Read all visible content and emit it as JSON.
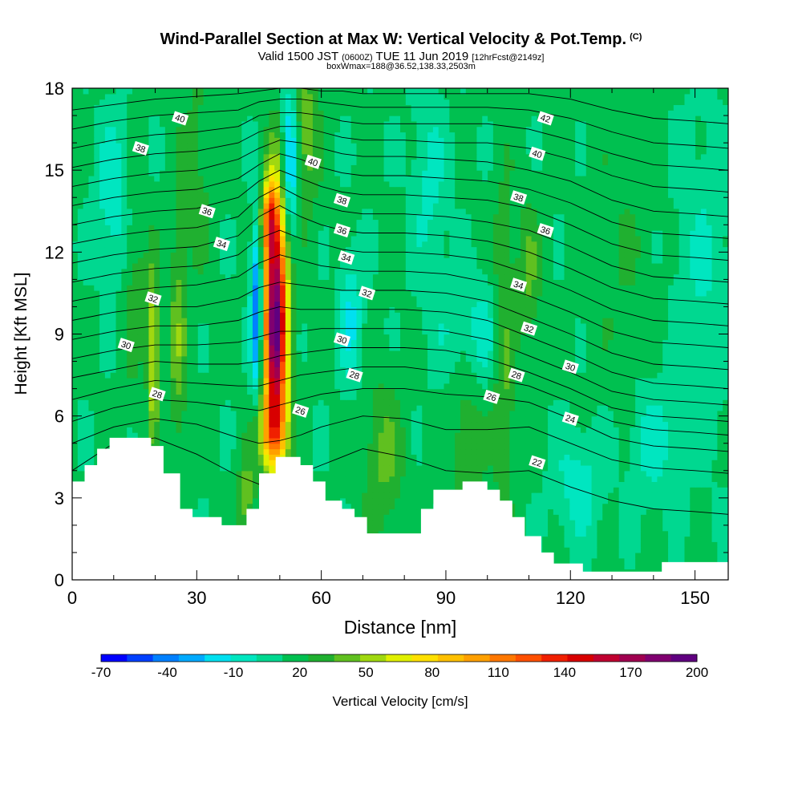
{
  "header": {
    "title": "Wind-Parallel Section at Max W: Vertical Velocity & Pot.Temp.",
    "copyright_mark": "(C)",
    "valid_prefix": "Valid 1500 JST",
    "valid_utc": "(0600Z)",
    "valid_date": "TUE 11 Jun 2019",
    "forecast_info": "[12hrFcst@2149z]",
    "boxwmax": "boxWmax=188@36.52,138.33,2503m"
  },
  "chart_data": {
    "type": "heatmap",
    "xlabel": "Distance [nm]",
    "ylabel": "Height [Kft MSL]",
    "xlim": [
      0,
      158
    ],
    "ylim": [
      0,
      18
    ],
    "x_ticks": [
      0,
      30,
      60,
      90,
      120,
      150
    ],
    "y_ticks": [
      0,
      3,
      6,
      9,
      12,
      15,
      18
    ],
    "colorbar": {
      "label": "Vertical Velocity [cm/s]",
      "tick_labels": [
        "-70",
        "-40",
        "-10",
        "20",
        "50",
        "80",
        "110",
        "140",
        "170",
        "200"
      ],
      "colors": [
        "#0000ff",
        "#0040ff",
        "#0080ff",
        "#00aaff",
        "#00e0f0",
        "#00e6c0",
        "#00d890",
        "#00c050",
        "#20b030",
        "#60c020",
        "#a0d810",
        "#e0f000",
        "#ffe000",
        "#ffc000",
        "#ffa000",
        "#ff7800",
        "#ff5000",
        "#f02000",
        "#d80000",
        "#c00030",
        "#a00050",
        "#800070",
        "#600080"
      ]
    },
    "terrain_kft": [
      [
        0,
        3.6
      ],
      [
        3,
        3.6
      ],
      [
        3,
        4.2
      ],
      [
        6,
        4.2
      ],
      [
        6,
        4.8
      ],
      [
        9,
        4.8
      ],
      [
        9,
        5.2
      ],
      [
        19,
        5.2
      ],
      [
        19,
        4.9
      ],
      [
        22,
        4.9
      ],
      [
        22,
        3.9
      ],
      [
        26,
        3.9
      ],
      [
        26,
        2.6
      ],
      [
        29,
        2.6
      ],
      [
        29,
        2.3
      ],
      [
        36,
        2.3
      ],
      [
        36,
        2.0
      ],
      [
        42,
        2.0
      ],
      [
        42,
        2.6
      ],
      [
        45,
        2.6
      ],
      [
        45,
        3.9
      ],
      [
        49,
        3.9
      ],
      [
        49,
        4.5
      ],
      [
        55,
        4.5
      ],
      [
        55,
        4.2
      ],
      [
        58,
        4.2
      ],
      [
        58,
        3.6
      ],
      [
        61,
        3.6
      ],
      [
        61,
        2.9
      ],
      [
        65,
        2.9
      ],
      [
        65,
        2.6
      ],
      [
        68,
        2.6
      ],
      [
        68,
        2.3
      ],
      [
        71,
        2.3
      ],
      [
        71,
        1.7
      ],
      [
        84,
        1.7
      ],
      [
        84,
        2.6
      ],
      [
        87,
        2.6
      ],
      [
        87,
        3.3
      ],
      [
        94,
        3.3
      ],
      [
        94,
        3.6
      ],
      [
        100,
        3.6
      ],
      [
        100,
        3.3
      ],
      [
        103,
        3.3
      ],
      [
        103,
        2.9
      ],
      [
        106,
        2.9
      ],
      [
        106,
        2.3
      ],
      [
        109,
        2.3
      ],
      [
        109,
        1.6
      ],
      [
        113,
        1.6
      ],
      [
        113,
        1.0
      ],
      [
        116,
        1.0
      ],
      [
        116,
        0.6
      ],
      [
        123,
        0.6
      ],
      [
        123,
        0.3
      ],
      [
        142,
        0.3
      ],
      [
        142,
        0.65
      ],
      [
        158,
        0.65
      ]
    ],
    "w_features": [
      {
        "x": 49,
        "y": 9.5,
        "sx": 2.0,
        "sy": 3.2,
        "amp": 190
      },
      {
        "x": 47.5,
        "y": 13.2,
        "sx": 1.3,
        "sy": 0.9,
        "amp": 70
      },
      {
        "x": 48,
        "y": 5.4,
        "sx": 2.4,
        "sy": 0.9,
        "amp": 60
      },
      {
        "x": 44.5,
        "y": 10.0,
        "sx": 1.0,
        "sy": 2.2,
        "amp": -70
      },
      {
        "x": 52.5,
        "y": 15.2,
        "sx": 1.4,
        "sy": 2.2,
        "amp": -55
      },
      {
        "x": 67,
        "y": 9.5,
        "sx": 2.0,
        "sy": 1.6,
        "amp": -30
      },
      {
        "x": 19.5,
        "y": 8.3,
        "sx": 0.9,
        "sy": 2.2,
        "amp": 55
      },
      {
        "x": 25.5,
        "y": 8.8,
        "sx": 1.5,
        "sy": 3.0,
        "amp": 30
      },
      {
        "x": 30,
        "y": 15,
        "sx": 3,
        "sy": 3,
        "amp": 15
      },
      {
        "x": 42,
        "y": 3.0,
        "sx": 1.5,
        "sy": 1.2,
        "amp": 30
      },
      {
        "x": 56,
        "y": 16.5,
        "sx": 2.5,
        "sy": 2.5,
        "amp": 30
      },
      {
        "x": 75,
        "y": 4.5,
        "sx": 3.5,
        "sy": 2,
        "amp": 25
      },
      {
        "x": 95,
        "y": 5.5,
        "sx": 3,
        "sy": 3,
        "amp": 20
      },
      {
        "x": 104,
        "y": 8.5,
        "sx": 2,
        "sy": 4,
        "amp": 30
      },
      {
        "x": 110,
        "y": 11,
        "sx": 2,
        "sy": 2,
        "amp": 25
      },
      {
        "x": 97,
        "y": 9,
        "sx": 6,
        "sy": 1.5,
        "amp": -25
      },
      {
        "x": 10,
        "y": 14,
        "sx": 3,
        "sy": 2,
        "amp": -25
      },
      {
        "x": 122,
        "y": 3.5,
        "sx": 4,
        "sy": 1.4,
        "amp": -22
      },
      {
        "x": 140,
        "y": 5,
        "sx": 4,
        "sy": 1.5,
        "amp": -20
      },
      {
        "x": 132,
        "y": 12,
        "sx": 6,
        "sy": 3,
        "amp": 10
      },
      {
        "x": 152,
        "y": 11,
        "sx": 5,
        "sy": 4,
        "amp": -15
      },
      {
        "x": 15,
        "y": 11,
        "sx": 2,
        "sy": 3,
        "amp": 18
      },
      {
        "x": 86,
        "y": 14.5,
        "sx": 3,
        "sy": 2.5,
        "amp": -18
      }
    ],
    "theta_lines_kft": {
      "x": [
        0,
        10,
        20,
        30,
        40,
        45,
        50,
        55,
        60,
        65,
        70,
        80,
        90,
        100,
        110,
        120,
        130,
        140,
        150,
        158
      ],
      "y": [
        [
          4.0,
          5.0,
          5.2,
          4.6,
          3.8,
          3.5,
          3.6,
          3.9,
          4.2,
          4.5,
          4.8,
          4.5,
          4.0,
          3.9,
          4.0,
          3.4,
          2.9,
          2.6,
          2.5,
          2.4
        ],
        [
          5.0,
          5.6,
          5.9,
          5.7,
          5.2,
          5.0,
          5.1,
          5.3,
          5.6,
          5.8,
          6.0,
          5.9,
          5.5,
          5.5,
          5.6,
          5.0,
          4.4,
          4.1,
          4.0,
          3.9
        ],
        [
          5.8,
          6.3,
          6.6,
          6.5,
          6.3,
          6.2,
          6.4,
          6.6,
          6.8,
          6.9,
          7.0,
          7.0,
          6.8,
          6.7,
          6.5,
          5.9,
          5.2,
          4.9,
          4.8,
          4.7
        ],
        [
          6.6,
          7.0,
          7.3,
          7.2,
          7.1,
          7.1,
          7.3,
          7.5,
          7.6,
          7.7,
          7.8,
          7.8,
          7.6,
          7.4,
          7.1,
          6.5,
          5.8,
          5.5,
          5.4,
          5.3
        ],
        [
          7.4,
          7.7,
          8.0,
          7.9,
          7.9,
          8.0,
          8.2,
          8.3,
          8.4,
          8.5,
          8.5,
          8.5,
          8.4,
          8.1,
          7.6,
          7.0,
          6.3,
          6.0,
          5.9,
          5.8
        ],
        [
          8.1,
          8.4,
          8.6,
          8.6,
          8.7,
          8.9,
          9.1,
          9.1,
          9.2,
          9.2,
          9.2,
          9.2,
          9.1,
          8.8,
          8.2,
          7.6,
          6.9,
          6.6,
          6.5,
          6.4
        ],
        [
          8.8,
          9.1,
          9.3,
          9.3,
          9.5,
          9.8,
          10.0,
          9.9,
          9.9,
          9.9,
          9.9,
          9.9,
          9.8,
          9.5,
          8.9,
          8.3,
          7.6,
          7.2,
          7.1,
          7.0
        ],
        [
          9.5,
          9.8,
          10.0,
          10.0,
          10.3,
          10.7,
          10.9,
          10.8,
          10.7,
          10.6,
          10.6,
          10.6,
          10.5,
          10.2,
          9.6,
          9.0,
          8.3,
          7.9,
          7.8,
          7.7
        ],
        [
          10.2,
          10.5,
          10.7,
          10.8,
          11.1,
          11.6,
          11.9,
          11.7,
          11.5,
          11.4,
          11.3,
          11.3,
          11.2,
          10.9,
          10.4,
          9.8,
          9.1,
          8.7,
          8.6,
          8.5
        ],
        [
          10.9,
          11.2,
          11.4,
          11.5,
          11.9,
          12.5,
          12.8,
          12.5,
          12.3,
          12.1,
          12.0,
          12.0,
          11.9,
          11.7,
          11.2,
          10.6,
          9.9,
          9.5,
          9.4,
          9.3
        ],
        [
          11.6,
          11.9,
          12.1,
          12.2,
          12.6,
          13.3,
          13.7,
          13.3,
          13.0,
          12.8,
          12.7,
          12.7,
          12.6,
          12.4,
          12.0,
          11.4,
          10.7,
          10.3,
          10.2,
          10.1
        ],
        [
          12.3,
          12.6,
          12.8,
          12.9,
          13.3,
          14.0,
          14.4,
          14.0,
          13.7,
          13.5,
          13.4,
          13.4,
          13.3,
          13.1,
          12.8,
          12.2,
          11.5,
          11.1,
          11.0,
          10.9
        ],
        [
          13.0,
          13.3,
          13.5,
          13.6,
          14.0,
          14.6,
          15.0,
          14.7,
          14.4,
          14.2,
          14.1,
          14.1,
          14.0,
          13.9,
          13.6,
          13.0,
          12.3,
          11.9,
          11.8,
          11.7
        ],
        [
          13.7,
          14.0,
          14.2,
          14.3,
          14.7,
          15.2,
          15.6,
          15.4,
          15.1,
          14.9,
          14.8,
          14.8,
          14.7,
          14.6,
          14.3,
          13.8,
          13.1,
          12.7,
          12.6,
          12.5
        ],
        [
          14.4,
          14.7,
          14.9,
          15.0,
          15.4,
          15.8,
          16.1,
          16.0,
          15.8,
          15.6,
          15.5,
          15.5,
          15.4,
          15.3,
          15.0,
          14.6,
          13.9,
          13.5,
          13.4,
          13.3
        ],
        [
          15.1,
          15.4,
          15.6,
          15.7,
          16.0,
          16.4,
          16.6,
          16.6,
          16.4,
          16.2,
          16.1,
          16.1,
          16.0,
          16.0,
          15.8,
          15.4,
          14.8,
          14.4,
          14.3,
          14.2
        ],
        [
          15.8,
          16.1,
          16.3,
          16.4,
          16.6,
          17.0,
          17.1,
          17.1,
          17.0,
          16.8,
          16.7,
          16.7,
          16.7,
          16.7,
          16.5,
          16.1,
          15.6,
          15.2,
          15.1,
          15.0
        ],
        [
          16.5,
          16.8,
          17.0,
          17.1,
          17.2,
          17.5,
          17.6,
          17.6,
          17.5,
          17.4,
          17.3,
          17.3,
          17.3,
          17.3,
          17.2,
          16.9,
          16.4,
          16.0,
          15.9,
          15.8
        ],
        [
          17.2,
          17.4,
          17.6,
          17.7,
          17.8,
          17.9,
          18.0,
          18.0,
          17.9,
          17.9,
          17.8,
          17.8,
          17.8,
          17.8,
          17.8,
          17.6,
          17.2,
          16.9,
          16.8,
          16.7
        ]
      ]
    },
    "contour_labels": [
      {
        "text": "40",
        "x": 26,
        "y": 16.9
      },
      {
        "text": "38",
        "x": 16.5,
        "y": 15.8
      },
      {
        "text": "36",
        "x": 32.5,
        "y": 13.5
      },
      {
        "text": "34",
        "x": 36,
        "y": 12.3
      },
      {
        "text": "32",
        "x": 19.5,
        "y": 10.3
      },
      {
        "text": "30",
        "x": 13,
        "y": 8.6
      },
      {
        "text": "28",
        "x": 20.5,
        "y": 6.8
      },
      {
        "text": "40",
        "x": 58,
        "y": 15.3
      },
      {
        "text": "38",
        "x": 65,
        "y": 13.9
      },
      {
        "text": "36",
        "x": 65,
        "y": 12.8
      },
      {
        "text": "34",
        "x": 66,
        "y": 11.8
      },
      {
        "text": "32",
        "x": 71,
        "y": 10.5
      },
      {
        "text": "30",
        "x": 65,
        "y": 8.8
      },
      {
        "text": "28",
        "x": 68,
        "y": 7.5
      },
      {
        "text": "26",
        "x": 55,
        "y": 6.2
      },
      {
        "text": "42",
        "x": 114,
        "y": 16.9
      },
      {
        "text": "40",
        "x": 112,
        "y": 15.6
      },
      {
        "text": "38",
        "x": 107.5,
        "y": 14.0
      },
      {
        "text": "36",
        "x": 114,
        "y": 12.8
      },
      {
        "text": "34",
        "x": 107.5,
        "y": 10.8
      },
      {
        "text": "32",
        "x": 110,
        "y": 9.2
      },
      {
        "text": "30",
        "x": 120,
        "y": 7.8
      },
      {
        "text": "28",
        "x": 107,
        "y": 7.5
      },
      {
        "text": "26",
        "x": 101,
        "y": 6.7
      },
      {
        "text": "24",
        "x": 120,
        "y": 5.9
      },
      {
        "text": "22",
        "x": 112,
        "y": 4.3
      }
    ]
  }
}
